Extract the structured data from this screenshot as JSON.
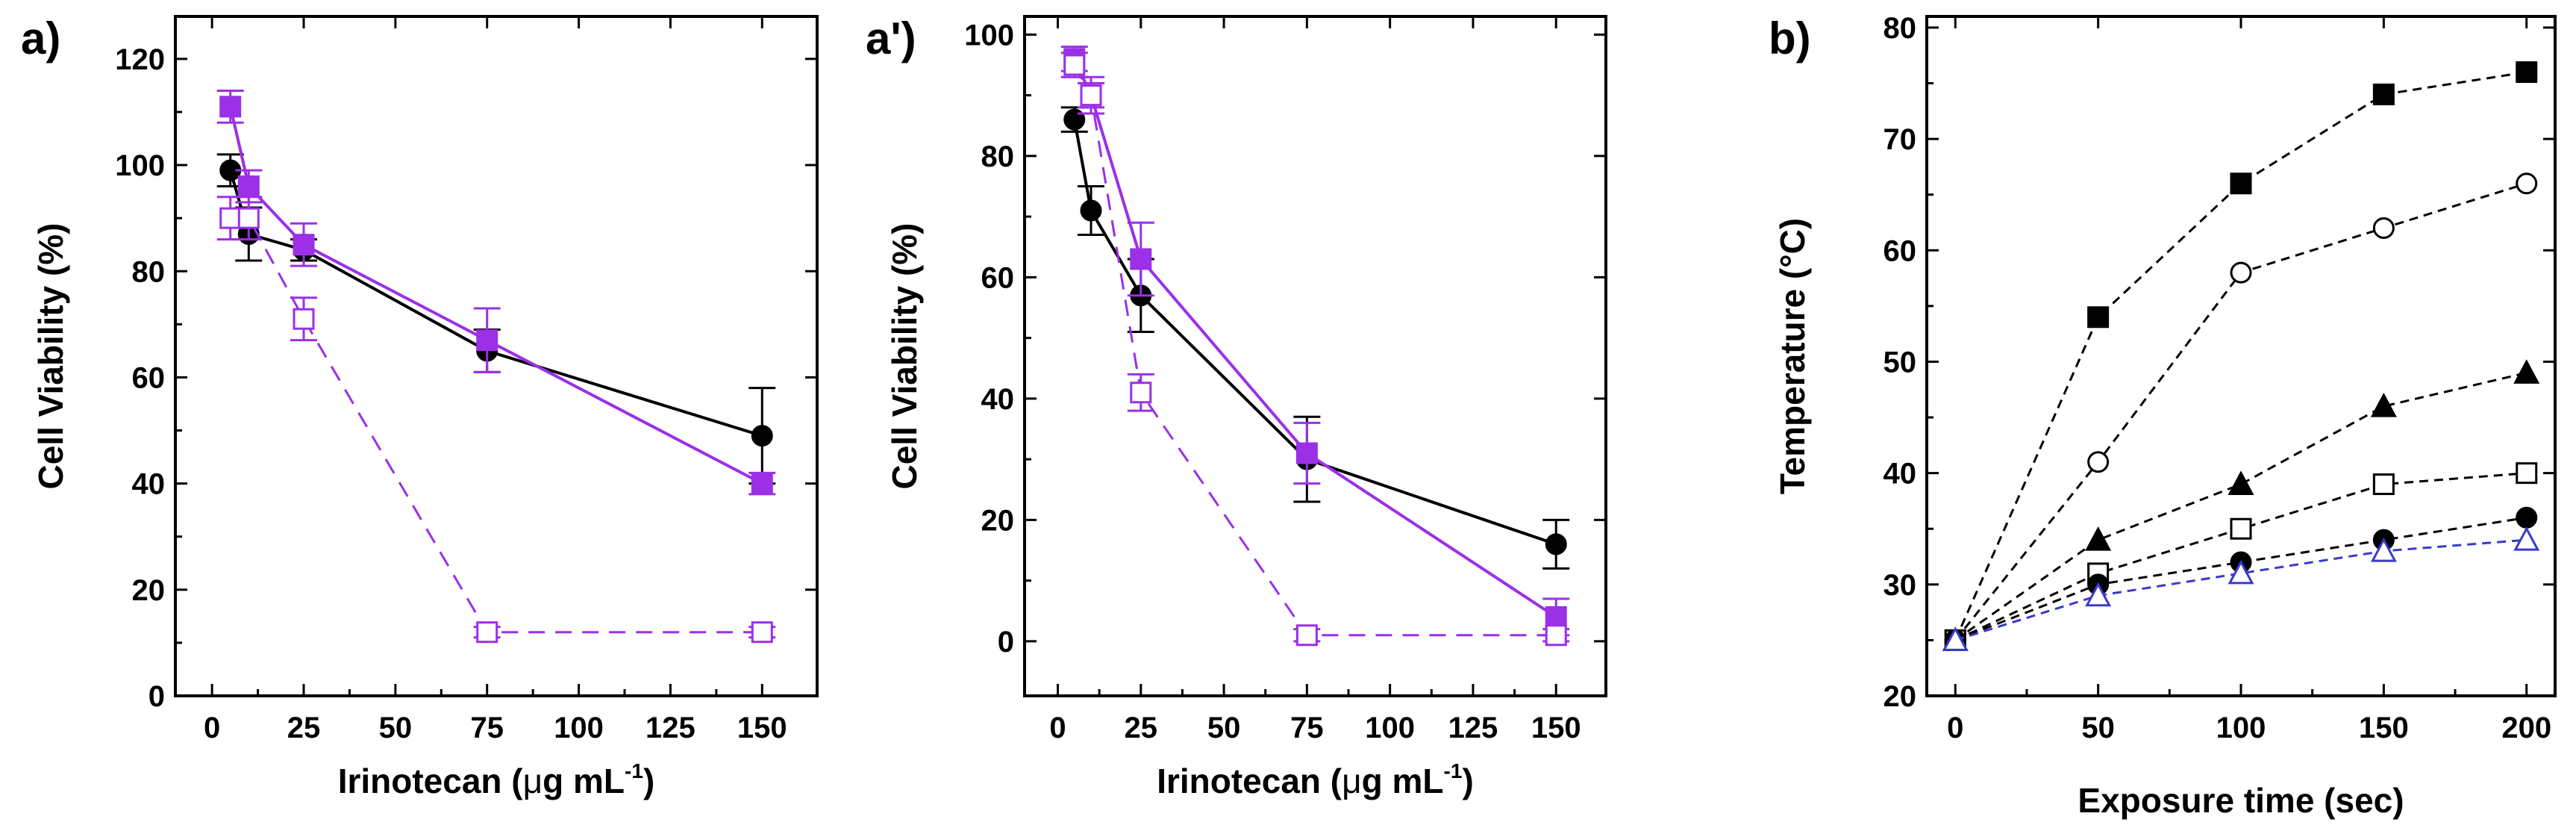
{
  "colors": {
    "black": "#000000",
    "purple": "#9b30e6",
    "blue": "#3a3acc"
  },
  "chart_data": [
    {
      "id": "a",
      "panel_label": "a)",
      "type": "line",
      "xlabel_main": "Irinotecan (",
      "xlabel_mu": "μ",
      "xlabel_units": "g mL",
      "xlabel_sup": "-1",
      "xlabel_close": ")",
      "ylabel": "Cell Viability (%)",
      "xlim": [
        -10,
        165
      ],
      "ylim": [
        0,
        128
      ],
      "xticks": [
        0,
        25,
        50,
        75,
        100,
        125,
        150
      ],
      "yticks": [
        0,
        20,
        40,
        60,
        80,
        100,
        120
      ],
      "series": [
        {
          "name": "black-filled-circle",
          "color": "black",
          "marker": "circle",
          "filled": true,
          "dash": false,
          "x": [
            5,
            10,
            25,
            75,
            150
          ],
          "y": [
            99,
            87,
            84,
            65,
            49
          ],
          "err": [
            3,
            5,
            2,
            4,
            9
          ]
        },
        {
          "name": "purple-filled-square",
          "color": "purple",
          "marker": "square",
          "filled": true,
          "dash": false,
          "x": [
            5,
            10,
            25,
            75,
            150
          ],
          "y": [
            111,
            96,
            85,
            67,
            40
          ],
          "err": [
            3,
            3,
            4,
            6,
            2
          ]
        },
        {
          "name": "purple-open-square",
          "color": "purple",
          "marker": "square",
          "filled": false,
          "dash": true,
          "x": [
            5,
            10,
            25,
            75,
            150
          ],
          "y": [
            90,
            90,
            71,
            12,
            12
          ],
          "err": [
            4,
            4,
            4,
            1,
            1
          ]
        }
      ]
    },
    {
      "id": "a2",
      "panel_label": "a')",
      "type": "line",
      "xlabel_main": "Irinotecan (",
      "xlabel_mu": "μ",
      "xlabel_units": "g mL",
      "xlabel_sup": "-1",
      "xlabel_close": ")",
      "ylabel": "Cell Viability (%)",
      "xlim": [
        -10,
        165
      ],
      "ylim": [
        -9,
        103
      ],
      "xticks": [
        0,
        25,
        50,
        75,
        100,
        125,
        150
      ],
      "yticks": [
        0,
        20,
        40,
        60,
        80,
        100
      ],
      "series": [
        {
          "name": "black-filled-circle",
          "color": "black",
          "marker": "circle",
          "filled": true,
          "dash": false,
          "x": [
            5,
            10,
            25,
            75,
            150
          ],
          "y": [
            86,
            71,
            57,
            30,
            16
          ],
          "err": [
            2,
            4,
            6,
            7,
            4
          ]
        },
        {
          "name": "purple-filled-square",
          "color": "purple",
          "marker": "square",
          "filled": true,
          "dash": false,
          "x": [
            5,
            10,
            25,
            75,
            150
          ],
          "y": [
            96,
            90,
            63,
            31,
            4
          ],
          "err": [
            2,
            3,
            6,
            5,
            3
          ]
        },
        {
          "name": "purple-open-square",
          "color": "purple",
          "marker": "square",
          "filled": false,
          "dash": true,
          "x": [
            5,
            10,
            25,
            75,
            150
          ],
          "y": [
            95,
            90,
            41,
            1,
            1
          ],
          "err": [
            2,
            2,
            3,
            1,
            1
          ]
        }
      ]
    },
    {
      "id": "b",
      "panel_label": "b)",
      "type": "line",
      "xlabel": "Exposure time (sec)",
      "ylabel": "Temperature (°C)",
      "xlim": [
        -10,
        210
      ],
      "ylim": [
        20,
        81
      ],
      "xticks": [
        0,
        50,
        100,
        150,
        200
      ],
      "yticks": [
        20,
        30,
        40,
        50,
        60,
        70,
        80
      ],
      "series": [
        {
          "name": "filled-square",
          "color": "black",
          "marker": "square",
          "filled": true,
          "dash": true,
          "x": [
            0,
            50,
            100,
            150,
            200
          ],
          "y": [
            25,
            54,
            66,
            74,
            76
          ]
        },
        {
          "name": "open-circle",
          "color": "black",
          "marker": "circle",
          "filled": false,
          "dash": true,
          "x": [
            0,
            50,
            100,
            150,
            200
          ],
          "y": [
            25,
            41,
            58,
            62,
            66
          ]
        },
        {
          "name": "filled-triangle",
          "color": "black",
          "marker": "triangle",
          "filled": true,
          "dash": true,
          "x": [
            0,
            50,
            100,
            150,
            200
          ],
          "y": [
            25,
            34,
            39,
            46,
            49
          ]
        },
        {
          "name": "open-square",
          "color": "black",
          "marker": "square",
          "filled": false,
          "dash": true,
          "x": [
            0,
            50,
            100,
            150,
            200
          ],
          "y": [
            25,
            31,
            35,
            39,
            40
          ]
        },
        {
          "name": "filled-circle",
          "color": "black",
          "marker": "circle",
          "filled": true,
          "dash": true,
          "x": [
            0,
            50,
            100,
            150,
            200
          ],
          "y": [
            25,
            30,
            32,
            34,
            36
          ]
        },
        {
          "name": "open-triangle",
          "color": "blue",
          "marker": "triangle",
          "filled": false,
          "dash": true,
          "x": [
            0,
            50,
            100,
            150,
            200
          ],
          "y": [
            25,
            29,
            31,
            33,
            34
          ]
        }
      ]
    }
  ]
}
